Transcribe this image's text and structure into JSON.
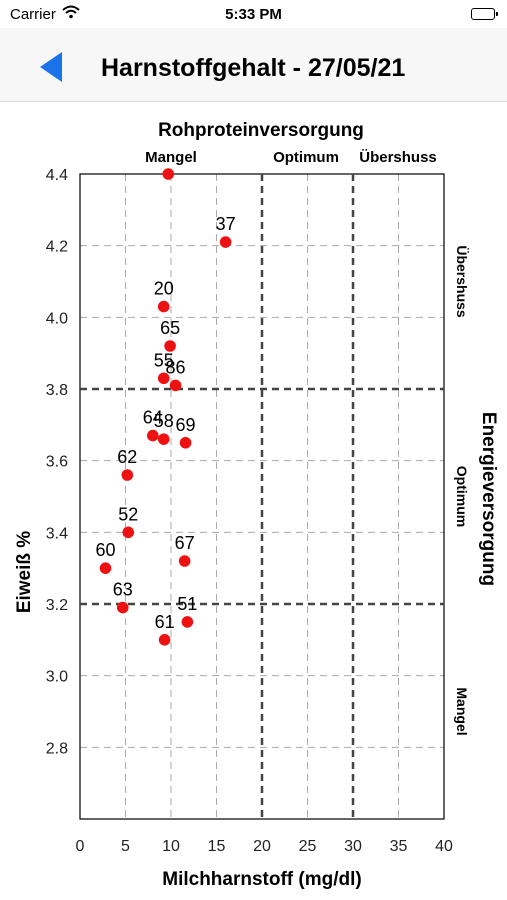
{
  "status_bar": {
    "carrier": "Carrier",
    "time": "5:33 PM",
    "wifi_icon": "wifi-icon",
    "battery_icon": "battery-icon"
  },
  "nav": {
    "back_icon": "back-arrow-icon",
    "back_color": "#1a73e8",
    "title": "Harnstoffgehalt - 27/05/21"
  },
  "chart_data": {
    "type": "scatter",
    "title": "Rohproteinversorgung",
    "xlabel": "Milchharnstoff (mg/dl)",
    "ylabel": "Eiweiß %",
    "right_title": "Energieversorgung",
    "xlim": [
      0,
      40
    ],
    "ylim": [
      2.6,
      4.4
    ],
    "x_ticks": [
      0,
      5,
      10,
      15,
      20,
      25,
      30,
      35,
      40
    ],
    "x_tick_labels": [
      "0",
      "5",
      "10",
      "15",
      "20",
      "25",
      "30",
      "35",
      "40"
    ],
    "y_ticks": [
      2.8,
      3.0,
      3.2,
      3.4,
      3.6,
      3.8,
      4.0,
      4.2,
      4.4
    ],
    "y_tick_labels": [
      "2.8",
      "3.0",
      "3.2",
      "3.4",
      "3.6",
      "3.8",
      "4.0",
      "4.2",
      "4.4"
    ],
    "grid": true,
    "x_thresholds": [
      20,
      30
    ],
    "y_thresholds": [
      3.2,
      3.8
    ],
    "top_zones": [
      {
        "label": "Mangel",
        "from": 0,
        "to": 20
      },
      {
        "label": "Optimum",
        "from": 20,
        "to": 30
      },
      {
        "label": "Übershuss",
        "from": 30,
        "to": 40
      }
    ],
    "right_zones": [
      {
        "label": "Übershuss",
        "from": 3.8,
        "to": 4.4
      },
      {
        "label": "Optimum",
        "from": 3.2,
        "to": 3.8
      },
      {
        "label": "Mangel",
        "from": 2.6,
        "to": 3.2
      }
    ],
    "point_color": "#ee1111",
    "points": [
      {
        "label": "",
        "x": 9.7,
        "y": 4.4
      },
      {
        "label": "37",
        "x": 16.0,
        "y": 4.21
      },
      {
        "label": "20",
        "x": 9.2,
        "y": 4.03
      },
      {
        "label": "65",
        "x": 9.9,
        "y": 3.92
      },
      {
        "label": "55",
        "x": 9.2,
        "y": 3.83
      },
      {
        "label": "86",
        "x": 10.5,
        "y": 3.81
      },
      {
        "label": "64",
        "x": 8.0,
        "y": 3.67
      },
      {
        "label": "58",
        "x": 9.2,
        "y": 3.66
      },
      {
        "label": "69",
        "x": 11.6,
        "y": 3.65
      },
      {
        "label": "62",
        "x": 5.2,
        "y": 3.56
      },
      {
        "label": "52",
        "x": 5.3,
        "y": 3.4
      },
      {
        "label": "60",
        "x": 2.8,
        "y": 3.3
      },
      {
        "label": "67",
        "x": 11.5,
        "y": 3.32
      },
      {
        "label": "63",
        "x": 4.7,
        "y": 3.19
      },
      {
        "label": "51",
        "x": 11.8,
        "y": 3.15
      },
      {
        "label": "61",
        "x": 9.3,
        "y": 3.1
      }
    ]
  }
}
